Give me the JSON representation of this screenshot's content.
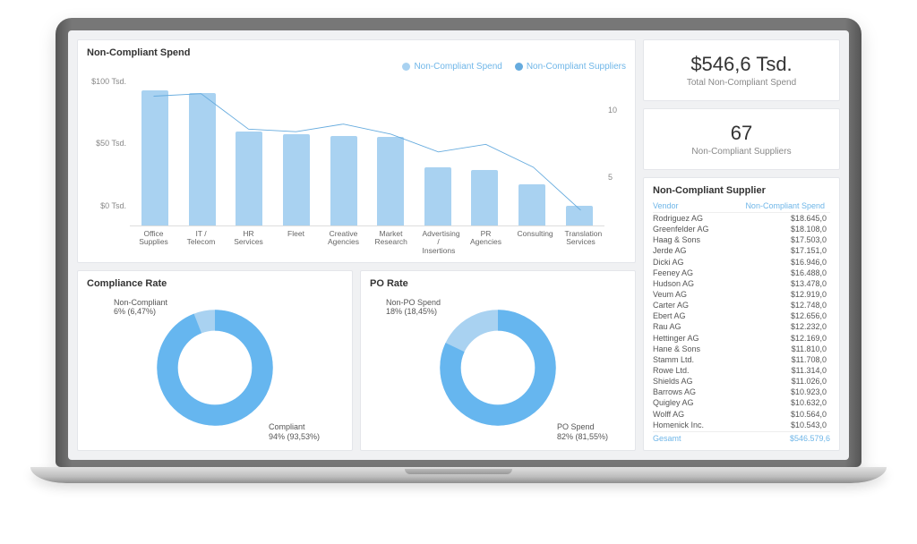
{
  "colors": {
    "panel_bg": "#ffffff",
    "page_bg": "#f0f1f3",
    "bar_fill": "#a9d2f1",
    "line_stroke": "#66abde",
    "accent_text": "#6fb6e8",
    "donut_primary": "#66b6ef",
    "donut_secondary": "#a9d2f1",
    "text_muted": "#888888"
  },
  "combo_chart": {
    "title": "Non-Compliant Spend",
    "type": "bar+line",
    "legend_bar": "Non-Compliant Spend",
    "legend_line": "Non-Compliant Suppliers",
    "y_left_ticks": [
      "$100 Tsd.",
      "$50 Tsd.",
      "$0 Tsd."
    ],
    "y_right_ticks": [
      "10",
      "5"
    ],
    "y_left_max": 110,
    "y_right_max": 12,
    "categories": [
      "Office Supplies",
      "IT / Telecom",
      "HR Services",
      "Fleet",
      "Creative Agencies",
      "Market Research",
      "Advertising / Insertions",
      "PR Agencies",
      "Consulting",
      "Translation Services"
    ],
    "bar_values": [
      98,
      96,
      68,
      66,
      65,
      64,
      42,
      40,
      30,
      14
    ],
    "line_values": [
      10.2,
      10.4,
      7.6,
      7.4,
      8.0,
      7.2,
      5.8,
      6.4,
      4.6,
      1.2
    ]
  },
  "kpi_spend": {
    "value": "$546,6 Tsd.",
    "label": "Total Non-Compliant Spend"
  },
  "kpi_suppliers": {
    "value": "67",
    "label": "Non-Compliant Suppliers"
  },
  "supplier_table": {
    "title": "Non-Compliant Supplier",
    "col_vendor": "Vendor",
    "col_spend": "Non-Compliant Spend",
    "total_label": "Gesamt",
    "total_value": "$546.579,6",
    "rows": [
      {
        "vendor": "Rodriguez AG",
        "spend": "$18.645,0"
      },
      {
        "vendor": "Greenfelder AG",
        "spend": "$18.108,0"
      },
      {
        "vendor": "Haag & Sons",
        "spend": "$17.503,0"
      },
      {
        "vendor": "Jerde AG",
        "spend": "$17.151,0"
      },
      {
        "vendor": "Dicki AG",
        "spend": "$16.946,0"
      },
      {
        "vendor": "Feeney AG",
        "spend": "$16.488,0"
      },
      {
        "vendor": "Hudson AG",
        "spend": "$13.478,0"
      },
      {
        "vendor": "Veum AG",
        "spend": "$12.919,0"
      },
      {
        "vendor": "Carter AG",
        "spend": "$12.748,0"
      },
      {
        "vendor": "Ebert AG",
        "spend": "$12.656,0"
      },
      {
        "vendor": "Rau AG",
        "spend": "$12.232,0"
      },
      {
        "vendor": "Hettinger AG",
        "spend": "$12.169,0"
      },
      {
        "vendor": "Hane & Sons",
        "spend": "$11.810,0"
      },
      {
        "vendor": "Stamm Ltd.",
        "spend": "$11.708,0"
      },
      {
        "vendor": "Rowe Ltd.",
        "spend": "$11.314,0"
      },
      {
        "vendor": "Shields AG",
        "spend": "$11.026,0"
      },
      {
        "vendor": "Barrows AG",
        "spend": "$10.923,0"
      },
      {
        "vendor": "Quigley AG",
        "spend": "$10.632,0"
      },
      {
        "vendor": "Wolff AG",
        "spend": "$10.564,0"
      },
      {
        "vendor": "Homenick Inc.",
        "spend": "$10.543,0"
      }
    ]
  },
  "compliance_donut": {
    "title": "Compliance Rate",
    "type": "donut",
    "primary_pct": 94,
    "primary_label_l1": "Compliant",
    "primary_label_l2": "94% (93,53%)",
    "secondary_label_l1": "Non-Compliant",
    "secondary_label_l2": "6% (6,47%)"
  },
  "po_donut": {
    "title": "PO Rate",
    "type": "donut",
    "primary_pct": 82,
    "primary_label_l1": "PO Spend",
    "primary_label_l2": "82% (81,55%)",
    "secondary_label_l1": "Non-PO Spend",
    "secondary_label_l2": "18% (18,45%)"
  }
}
